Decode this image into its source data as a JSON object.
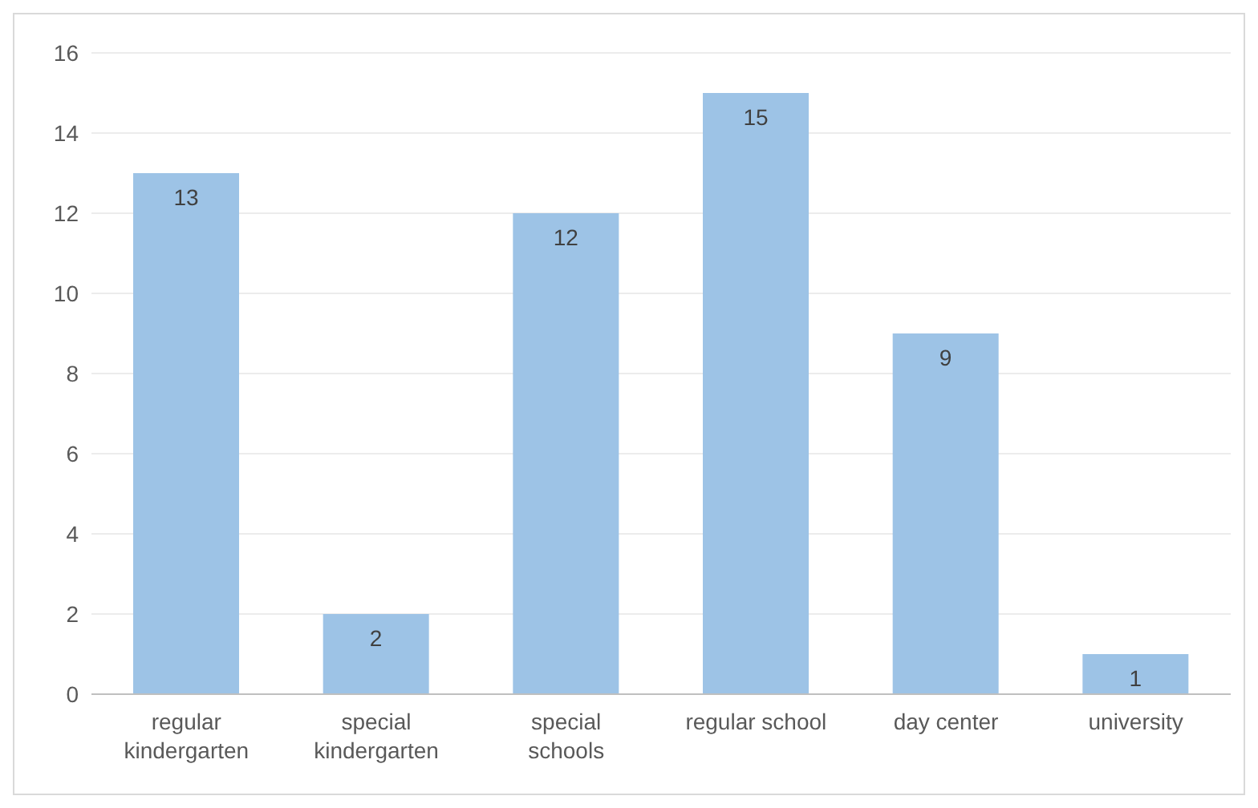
{
  "chart_data": {
    "type": "bar",
    "categories": [
      "regular kindergarten",
      "special kindergarten",
      "special schools",
      "regular school",
      "day center",
      "university"
    ],
    "values": [
      13,
      2,
      12,
      15,
      9,
      1
    ],
    "color": "#9dc3e6",
    "ylim": [
      0,
      16
    ],
    "yticks": [
      0,
      2,
      4,
      6,
      8,
      10,
      12,
      14,
      16
    ],
    "grid": "y",
    "data_labels": true
  }
}
